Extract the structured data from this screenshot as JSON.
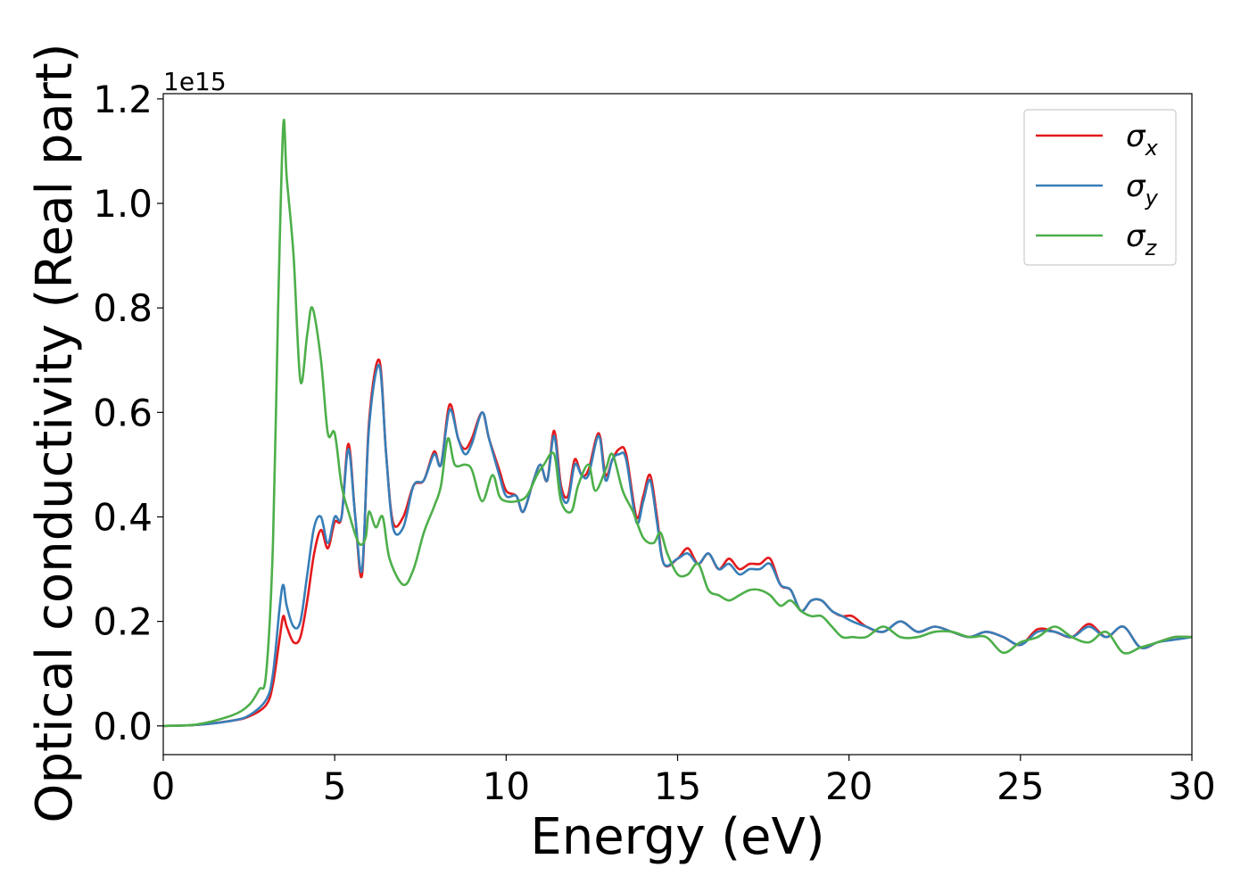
{
  "chart_data": {
    "type": "line",
    "title": "",
    "xlabel": "Energy (eV)",
    "ylabel": "Optical conductivity (Real part)",
    "y_offset_label": "1e15",
    "xlim": [
      0,
      30
    ],
    "ylim": [
      -0.055,
      1.21
    ],
    "y_scale_factor": 1000000000000000.0,
    "xticks": [
      0,
      5,
      10,
      15,
      20,
      25,
      30
    ],
    "xtick_labels": [
      "0",
      "5",
      "10",
      "15",
      "20",
      "25",
      "30"
    ],
    "yticks": [
      0.0,
      0.2,
      0.4,
      0.6,
      0.8,
      1.0,
      1.2
    ],
    "ytick_labels": [
      "0.0",
      "0.2",
      "0.4",
      "0.6",
      "0.8",
      "1.0",
      "1.2"
    ],
    "grid": false,
    "legend": {
      "position": "top-right",
      "entries": [
        {
          "base": "σ",
          "sub": "x"
        },
        {
          "base": "σ",
          "sub": "y"
        },
        {
          "base": "σ",
          "sub": "z"
        }
      ]
    },
    "series": [
      {
        "name": "σx",
        "color": "#e41a1c",
        "x": [
          0,
          1,
          2,
          2.5,
          3.0,
          3.2,
          3.4,
          3.5,
          3.6,
          3.8,
          4.0,
          4.2,
          4.4,
          4.6,
          4.8,
          5.0,
          5.2,
          5.4,
          5.6,
          5.8,
          6.0,
          6.3,
          6.5,
          6.7,
          7.0,
          7.3,
          7.6,
          7.9,
          8.1,
          8.35,
          8.6,
          8.8,
          9.0,
          9.3,
          9.5,
          9.8,
          10.0,
          10.3,
          10.5,
          10.8,
          11.0,
          11.2,
          11.4,
          11.6,
          11.8,
          12.0,
          12.2,
          12.4,
          12.7,
          12.9,
          13.1,
          13.3,
          13.5,
          13.8,
          14.0,
          14.2,
          14.4,
          14.6,
          15.0,
          15.3,
          15.6,
          15.9,
          16.2,
          16.5,
          16.8,
          17.1,
          17.4,
          17.7,
          18.0,
          18.3,
          18.6,
          18.9,
          19.2,
          19.5,
          19.8,
          20.1,
          20.5,
          21.0,
          21.5,
          22.0,
          22.5,
          23.0,
          23.5,
          24.0,
          24.5,
          25.0,
          25.5,
          26.0,
          26.5,
          27.0,
          27.5,
          28.0,
          28.5,
          29.0,
          29.5,
          30.0
        ],
        "values": [
          0,
          0.002,
          0.01,
          0.018,
          0.04,
          0.08,
          0.17,
          0.21,
          0.19,
          0.16,
          0.17,
          0.24,
          0.33,
          0.375,
          0.34,
          0.39,
          0.4,
          0.54,
          0.4,
          0.29,
          0.58,
          0.7,
          0.52,
          0.39,
          0.4,
          0.46,
          0.47,
          0.525,
          0.5,
          0.615,
          0.55,
          0.53,
          0.55,
          0.6,
          0.55,
          0.49,
          0.45,
          0.44,
          0.41,
          0.47,
          0.5,
          0.47,
          0.565,
          0.46,
          0.44,
          0.51,
          0.48,
          0.49,
          0.56,
          0.48,
          0.51,
          0.53,
          0.52,
          0.4,
          0.44,
          0.48,
          0.4,
          0.31,
          0.32,
          0.34,
          0.31,
          0.33,
          0.3,
          0.32,
          0.3,
          0.31,
          0.31,
          0.32,
          0.27,
          0.26,
          0.22,
          0.24,
          0.24,
          0.22,
          0.21,
          0.21,
          0.19,
          0.18,
          0.2,
          0.18,
          0.19,
          0.18,
          0.17,
          0.18,
          0.17,
          0.155,
          0.185,
          0.18,
          0.17,
          0.195,
          0.17,
          0.19,
          0.15,
          0.16,
          0.17,
          0.17
        ]
      },
      {
        "name": "σy",
        "color": "#377eb8",
        "x": [
          0,
          1,
          2,
          2.5,
          3.0,
          3.2,
          3.4,
          3.5,
          3.6,
          3.8,
          4.0,
          4.2,
          4.4,
          4.6,
          4.8,
          5.0,
          5.2,
          5.4,
          5.6,
          5.8,
          6.0,
          6.3,
          6.5,
          6.7,
          7.0,
          7.3,
          7.6,
          7.9,
          8.1,
          8.35,
          8.6,
          8.8,
          9.0,
          9.3,
          9.5,
          9.8,
          10.0,
          10.3,
          10.5,
          10.8,
          11.0,
          11.2,
          11.4,
          11.6,
          11.8,
          12.0,
          12.2,
          12.4,
          12.7,
          12.9,
          13.1,
          13.3,
          13.5,
          13.8,
          14.0,
          14.2,
          14.4,
          14.6,
          15.0,
          15.3,
          15.6,
          15.9,
          16.2,
          16.5,
          16.8,
          17.1,
          17.4,
          17.7,
          18.0,
          18.3,
          18.6,
          18.9,
          19.2,
          19.5,
          19.8,
          20.1,
          20.5,
          21.0,
          21.5,
          22.0,
          22.5,
          23.0,
          23.5,
          24.0,
          24.5,
          25.0,
          25.5,
          26.0,
          26.5,
          27.0,
          27.5,
          28.0,
          28.5,
          29.0,
          29.5,
          30.0
        ],
        "values": [
          0,
          0.002,
          0.01,
          0.02,
          0.05,
          0.1,
          0.23,
          0.27,
          0.23,
          0.19,
          0.2,
          0.29,
          0.38,
          0.4,
          0.35,
          0.4,
          0.4,
          0.53,
          0.4,
          0.3,
          0.57,
          0.69,
          0.52,
          0.38,
          0.38,
          0.46,
          0.47,
          0.52,
          0.5,
          0.605,
          0.55,
          0.52,
          0.54,
          0.6,
          0.55,
          0.48,
          0.44,
          0.44,
          0.41,
          0.47,
          0.5,
          0.47,
          0.555,
          0.45,
          0.43,
          0.5,
          0.48,
          0.48,
          0.555,
          0.47,
          0.51,
          0.52,
          0.51,
          0.39,
          0.43,
          0.47,
          0.39,
          0.31,
          0.32,
          0.33,
          0.31,
          0.33,
          0.3,
          0.31,
          0.29,
          0.3,
          0.3,
          0.31,
          0.27,
          0.26,
          0.22,
          0.24,
          0.24,
          0.22,
          0.21,
          0.2,
          0.19,
          0.18,
          0.2,
          0.18,
          0.19,
          0.18,
          0.17,
          0.18,
          0.17,
          0.155,
          0.18,
          0.18,
          0.17,
          0.19,
          0.17,
          0.19,
          0.15,
          0.16,
          0.165,
          0.17
        ]
      },
      {
        "name": "σz",
        "color": "#4daf4a",
        "x": [
          0,
          1,
          2,
          2.5,
          2.8,
          3.0,
          3.2,
          3.35,
          3.5,
          3.6,
          3.8,
          4.0,
          4.2,
          4.35,
          4.6,
          4.8,
          5.0,
          5.2,
          5.4,
          5.7,
          5.9,
          6.0,
          6.2,
          6.4,
          6.6,
          7.0,
          7.3,
          7.6,
          7.9,
          8.1,
          8.3,
          8.5,
          8.8,
          9.0,
          9.3,
          9.6,
          9.8,
          10.0,
          10.3,
          10.6,
          10.9,
          11.1,
          11.4,
          11.6,
          11.9,
          12.1,
          12.4,
          12.6,
          12.9,
          13.1,
          13.4,
          13.7,
          14.0,
          14.3,
          14.5,
          14.7,
          15.0,
          15.3,
          15.6,
          15.9,
          16.2,
          16.5,
          16.8,
          17.1,
          17.4,
          17.7,
          18.0,
          18.3,
          18.6,
          18.9,
          19.2,
          19.5,
          19.8,
          20.1,
          20.5,
          21.0,
          21.5,
          22.0,
          22.5,
          23.0,
          23.5,
          24.0,
          24.5,
          25.0,
          25.5,
          26.0,
          26.5,
          27.0,
          27.5,
          28.0,
          28.5,
          29.0,
          29.5,
          30.0
        ],
        "values": [
          0,
          0.003,
          0.02,
          0.04,
          0.07,
          0.1,
          0.35,
          0.8,
          1.15,
          1.05,
          0.9,
          0.66,
          0.75,
          0.8,
          0.7,
          0.56,
          0.56,
          0.46,
          0.41,
          0.35,
          0.36,
          0.41,
          0.38,
          0.4,
          0.32,
          0.27,
          0.3,
          0.37,
          0.42,
          0.46,
          0.55,
          0.5,
          0.5,
          0.49,
          0.43,
          0.48,
          0.44,
          0.43,
          0.43,
          0.44,
          0.48,
          0.5,
          0.52,
          0.43,
          0.41,
          0.46,
          0.5,
          0.45,
          0.49,
          0.52,
          0.45,
          0.41,
          0.36,
          0.35,
          0.37,
          0.33,
          0.29,
          0.29,
          0.31,
          0.26,
          0.25,
          0.24,
          0.25,
          0.26,
          0.26,
          0.25,
          0.23,
          0.24,
          0.22,
          0.21,
          0.21,
          0.19,
          0.17,
          0.17,
          0.17,
          0.19,
          0.17,
          0.17,
          0.18,
          0.18,
          0.17,
          0.17,
          0.14,
          0.16,
          0.17,
          0.19,
          0.17,
          0.16,
          0.18,
          0.14,
          0.15,
          0.16,
          0.17,
          0.17
        ]
      }
    ]
  }
}
